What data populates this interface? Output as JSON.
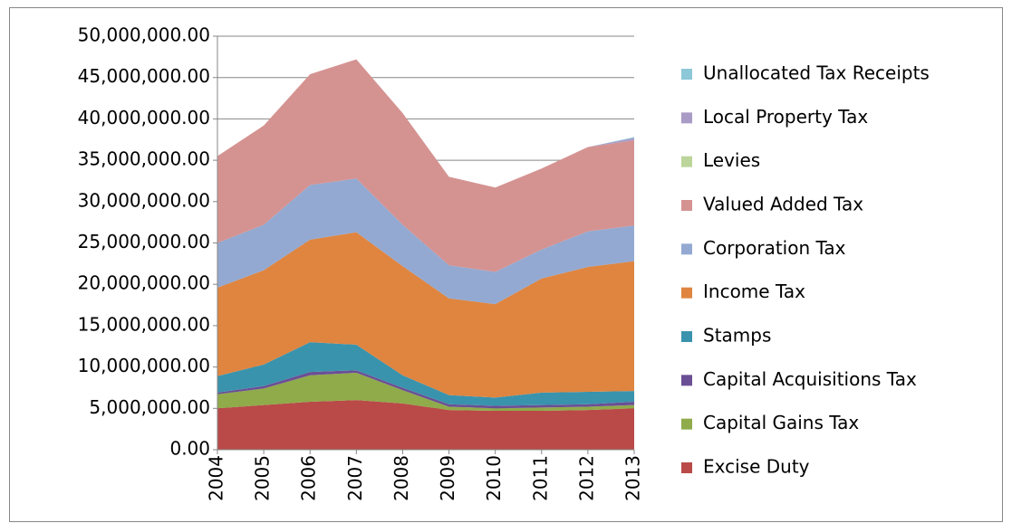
{
  "chart_data": {
    "type": "stacked_area",
    "categories": [
      "2004",
      "2005",
      "2006",
      "2007",
      "2008",
      "2009",
      "2010",
      "2011",
      "2012",
      "2013"
    ],
    "series": [
      {
        "name": "Excise Duty",
        "color": "#b94a48",
        "values": [
          5000000,
          5400000,
          5800000,
          6000000,
          5600000,
          4800000,
          4700000,
          4700000,
          4800000,
          5000000
        ]
      },
      {
        "name": "Capital Gains Tax",
        "color": "#8fab4a",
        "values": [
          1700000,
          2000000,
          3200000,
          3300000,
          1600000,
          400000,
          300000,
          400000,
          400000,
          400000
        ]
      },
      {
        "name": "Capital Acquisitions Tax",
        "color": "#6b4f94",
        "values": [
          200000,
          300000,
          400000,
          300000,
          300000,
          300000,
          300000,
          300000,
          300000,
          400000
        ]
      },
      {
        "name": "Stamps",
        "color": "#3a93ad",
        "values": [
          2000000,
          2600000,
          3600000,
          3100000,
          1500000,
          1100000,
          1000000,
          1500000,
          1500000,
          1300000
        ]
      },
      {
        "name": "Income Tax",
        "color": "#df8540",
        "values": [
          10700000,
          11400000,
          12400000,
          13600000,
          13200000,
          11700000,
          11300000,
          13800000,
          15100000,
          15700000
        ]
      },
      {
        "name": "Corporation Tax",
        "color": "#93a9d2",
        "values": [
          5400000,
          5500000,
          6600000,
          6500000,
          5000000,
          4000000,
          3900000,
          3500000,
          4300000,
          4300000
        ]
      },
      {
        "name": "Valued Added Tax",
        "color": "#d49391",
        "values": [
          10500000,
          12000000,
          13400000,
          14400000,
          13500000,
          10700000,
          10200000,
          9800000,
          10200000,
          10300000
        ]
      },
      {
        "name": "Levies",
        "color": "#bcd59b",
        "values": [
          0,
          0,
          0,
          0,
          0,
          0,
          0,
          0,
          0,
          0
        ]
      },
      {
        "name": "Local Property Tax",
        "color": "#a99bc5",
        "values": [
          0,
          0,
          0,
          0,
          0,
          0,
          0,
          0,
          0,
          300000
        ]
      },
      {
        "name": "Unallocated Tax Receipts",
        "color": "#8cc8d8",
        "values": [
          0,
          0,
          0,
          0,
          0,
          0,
          0,
          0,
          0,
          100000
        ]
      }
    ],
    "ylim": [
      0,
      50000000
    ],
    "yticks": [
      {
        "value": 0,
        "label": "0.00"
      },
      {
        "value": 5000000,
        "label": "5,000,000.00"
      },
      {
        "value": 10000000,
        "label": "10,000,000.00"
      },
      {
        "value": 15000000,
        "label": "15,000,000.00"
      },
      {
        "value": 20000000,
        "label": "20,000,000.00"
      },
      {
        "value": 25000000,
        "label": "25,000,000.00"
      },
      {
        "value": 30000000,
        "label": "30,000,000.00"
      },
      {
        "value": 35000000,
        "label": "35,000,000.00"
      },
      {
        "value": 40000000,
        "label": "40,000,000.00"
      },
      {
        "value": 45000000,
        "label": "45,000,000.00"
      },
      {
        "value": 50000000,
        "label": "50,000,000.00"
      }
    ],
    "grid": true,
    "legend": "right"
  }
}
